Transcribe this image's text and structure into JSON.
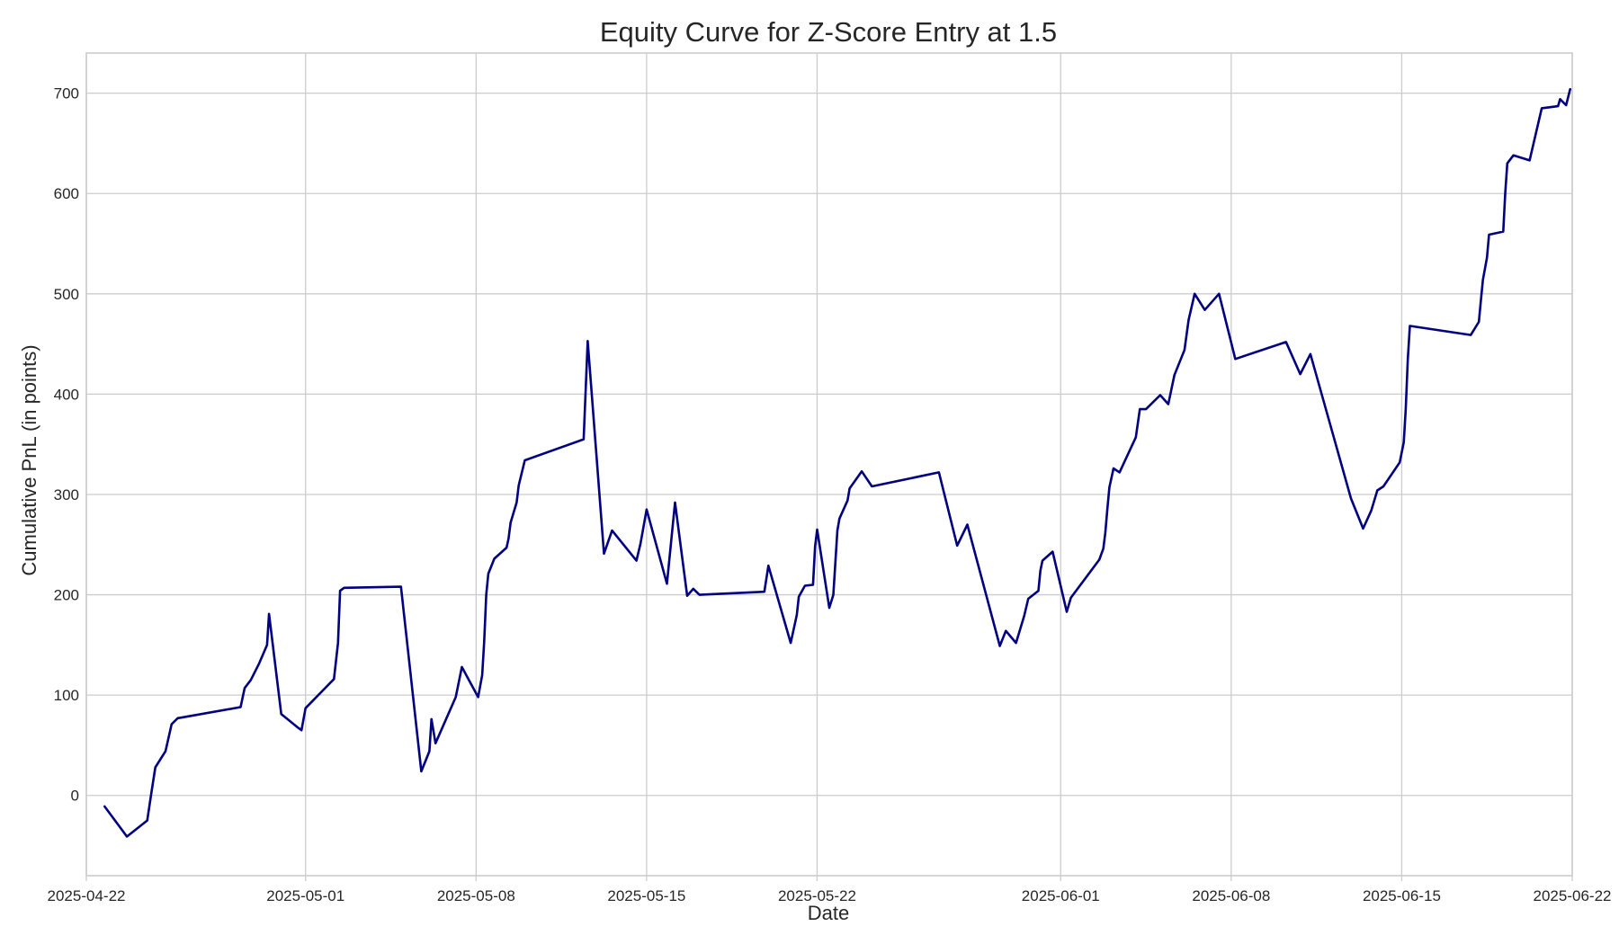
{
  "chart_data": {
    "type": "line",
    "title": "Equity Curve for Z-Score Entry at 1.5",
    "xlabel": "Date",
    "ylabel": "Cumulative PnL (in points)",
    "x_type": "date",
    "xlim": [
      "2025-04-22T00:00",
      "2025-06-22T00:00"
    ],
    "ylim": [
      -80,
      740
    ],
    "x_ticks": [
      "2025-04-22",
      "2025-05-01",
      "2025-05-08",
      "2025-05-15",
      "2025-05-22",
      "2025-06-01",
      "2025-06-08",
      "2025-06-15",
      "2025-06-22"
    ],
    "y_ticks": [
      0,
      100,
      200,
      300,
      400,
      500,
      600,
      700
    ],
    "y_tick_labels": [
      "0",
      "100",
      "200",
      "300",
      "400",
      "500",
      "600",
      "700"
    ],
    "grid": true,
    "line_color": "#000080",
    "series": [
      {
        "x": [
          "2025-04-22T18:00",
          "2025-04-23T16:00",
          "2025-04-24T12:00",
          "2025-04-24T16:00",
          "2025-04-24T20:00",
          "2025-04-25T06:00",
          "2025-04-25T12:00",
          "2025-04-25T18:00",
          "2025-04-26T00:00",
          "2025-04-28T08:00",
          "2025-04-28T12:00",
          "2025-04-28T18:00",
          "2025-04-29T02:00",
          "2025-04-29T10:00",
          "2025-04-29T12:00",
          "2025-04-30T00:00",
          "2025-04-30T16:00",
          "2025-04-30T20:00",
          "2025-05-01T00:00",
          "2025-05-02T04:00",
          "2025-05-02T08:00",
          "2025-05-02T10:00",
          "2025-05-02T14:00",
          "2025-05-04T22:00",
          "2025-05-05T18:00",
          "2025-05-06T02:00",
          "2025-05-06T04:00",
          "2025-05-06T08:00",
          "2025-05-07T04:00",
          "2025-05-07T10:00",
          "2025-05-08T02:00",
          "2025-05-08T06:00",
          "2025-05-08T08:00",
          "2025-05-08T10:00",
          "2025-05-08T12:00",
          "2025-05-08T18:00",
          "2025-05-09T06:00",
          "2025-05-09T08:00",
          "2025-05-09T10:00",
          "2025-05-09T16:00",
          "2025-05-09T18:00",
          "2025-05-10T00:00",
          "2025-05-12T10:00",
          "2025-05-12T14:00",
          "2025-05-13T06:00",
          "2025-05-13T14:00",
          "2025-05-14T14:00",
          "2025-05-14T18:00",
          "2025-05-15T00:00",
          "2025-05-15T20:00",
          "2025-05-16T04:00",
          "2025-05-16T16:00",
          "2025-05-16T22:00",
          "2025-05-17T04:00",
          "2025-05-19T20:00",
          "2025-05-20T00:00",
          "2025-05-20T22:00",
          "2025-05-21T04:00",
          "2025-05-21T06:00",
          "2025-05-21T12:00",
          "2025-05-21T20:00",
          "2025-05-21T22:00",
          "2025-05-22T00:00",
          "2025-05-22T12:00",
          "2025-05-22T16:00",
          "2025-05-22T20:00",
          "2025-05-22T22:00",
          "2025-05-23T06:00",
          "2025-05-23T08:00",
          "2025-05-23T20:00",
          "2025-05-24T06:00",
          "2025-05-27T00:00",
          "2025-05-27T18:00",
          "2025-05-28T04:00",
          "2025-05-29T12:00",
          "2025-05-29T18:00",
          "2025-05-30T04:00",
          "2025-05-30T12:00",
          "2025-05-30T16:00",
          "2025-05-31T02:00",
          "2025-05-31T04:00",
          "2025-05-31T06:00",
          "2025-05-31T16:00",
          "2025-06-01T06:00",
          "2025-06-01T10:00",
          "2025-06-02T14:00",
          "2025-06-02T18:00",
          "2025-06-02T20:00",
          "2025-06-02T22:00",
          "2025-06-03T00:00",
          "2025-06-03T04:00",
          "2025-06-03T10:00",
          "2025-06-04T02:00",
          "2025-06-04T06:00",
          "2025-06-04T12:00",
          "2025-06-05T02:00",
          "2025-06-05T10:00",
          "2025-06-05T16:00",
          "2025-06-06T02:00",
          "2025-06-06T06:00",
          "2025-06-06T12:00",
          "2025-06-06T22:00",
          "2025-06-07T12:00",
          "2025-06-08T04:00",
          "2025-06-10T06:00",
          "2025-06-10T20:00",
          "2025-06-11T06:00",
          "2025-06-12T22:00",
          "2025-06-13T10:00",
          "2025-06-13T18:00",
          "2025-06-14T00:00",
          "2025-06-14T06:00",
          "2025-06-14T22:00",
          "2025-06-15T02:00",
          "2025-06-15T04:00",
          "2025-06-15T06:00",
          "2025-06-15T08:00",
          "2025-06-17T20:00",
          "2025-06-18T04:00",
          "2025-06-18T06:00",
          "2025-06-18T08:00",
          "2025-06-18T12:00",
          "2025-06-18T14:00",
          "2025-06-19T04:00",
          "2025-06-19T06:00",
          "2025-06-19T08:00",
          "2025-06-19T14:00",
          "2025-06-20T06:00",
          "2025-06-20T18:00",
          "2025-06-21T10:00",
          "2025-06-21T12:00",
          "2025-06-21T18:00",
          "2025-06-21T22:00"
        ],
        "y": [
          -11,
          -41,
          -25,
          2,
          28,
          44,
          71,
          77,
          78,
          88,
          107,
          115,
          131,
          150,
          181,
          81,
          68,
          65,
          87,
          116,
          152,
          204,
          207,
          208,
          24,
          44,
          76,
          52,
          98,
          128,
          98,
          120,
          153,
          200,
          221,
          236,
          247,
          256,
          272,
          292,
          309,
          334,
          355,
          453,
          241,
          264,
          234,
          251,
          285,
          211,
          292,
          199,
          206,
          200,
          203,
          229,
          152,
          180,
          198,
          209,
          210,
          248,
          265,
          187,
          200,
          264,
          276,
          294,
          306,
          323,
          308,
          322,
          249,
          270,
          149,
          164,
          152,
          179,
          196,
          204,
          224,
          234,
          243,
          183,
          197,
          235,
          246,
          262,
          286,
          307,
          326,
          322,
          357,
          385,
          385,
          399,
          390,
          419,
          444,
          474,
          500,
          484,
          500,
          435,
          452,
          420,
          440,
          296,
          266,
          284,
          304,
          308,
          332,
          352,
          385,
          435,
          468,
          459,
          472,
          493,
          514,
          536,
          559,
          562,
          600,
          630,
          638,
          633,
          685,
          687,
          694,
          688,
          704
        ]
      }
    ]
  }
}
